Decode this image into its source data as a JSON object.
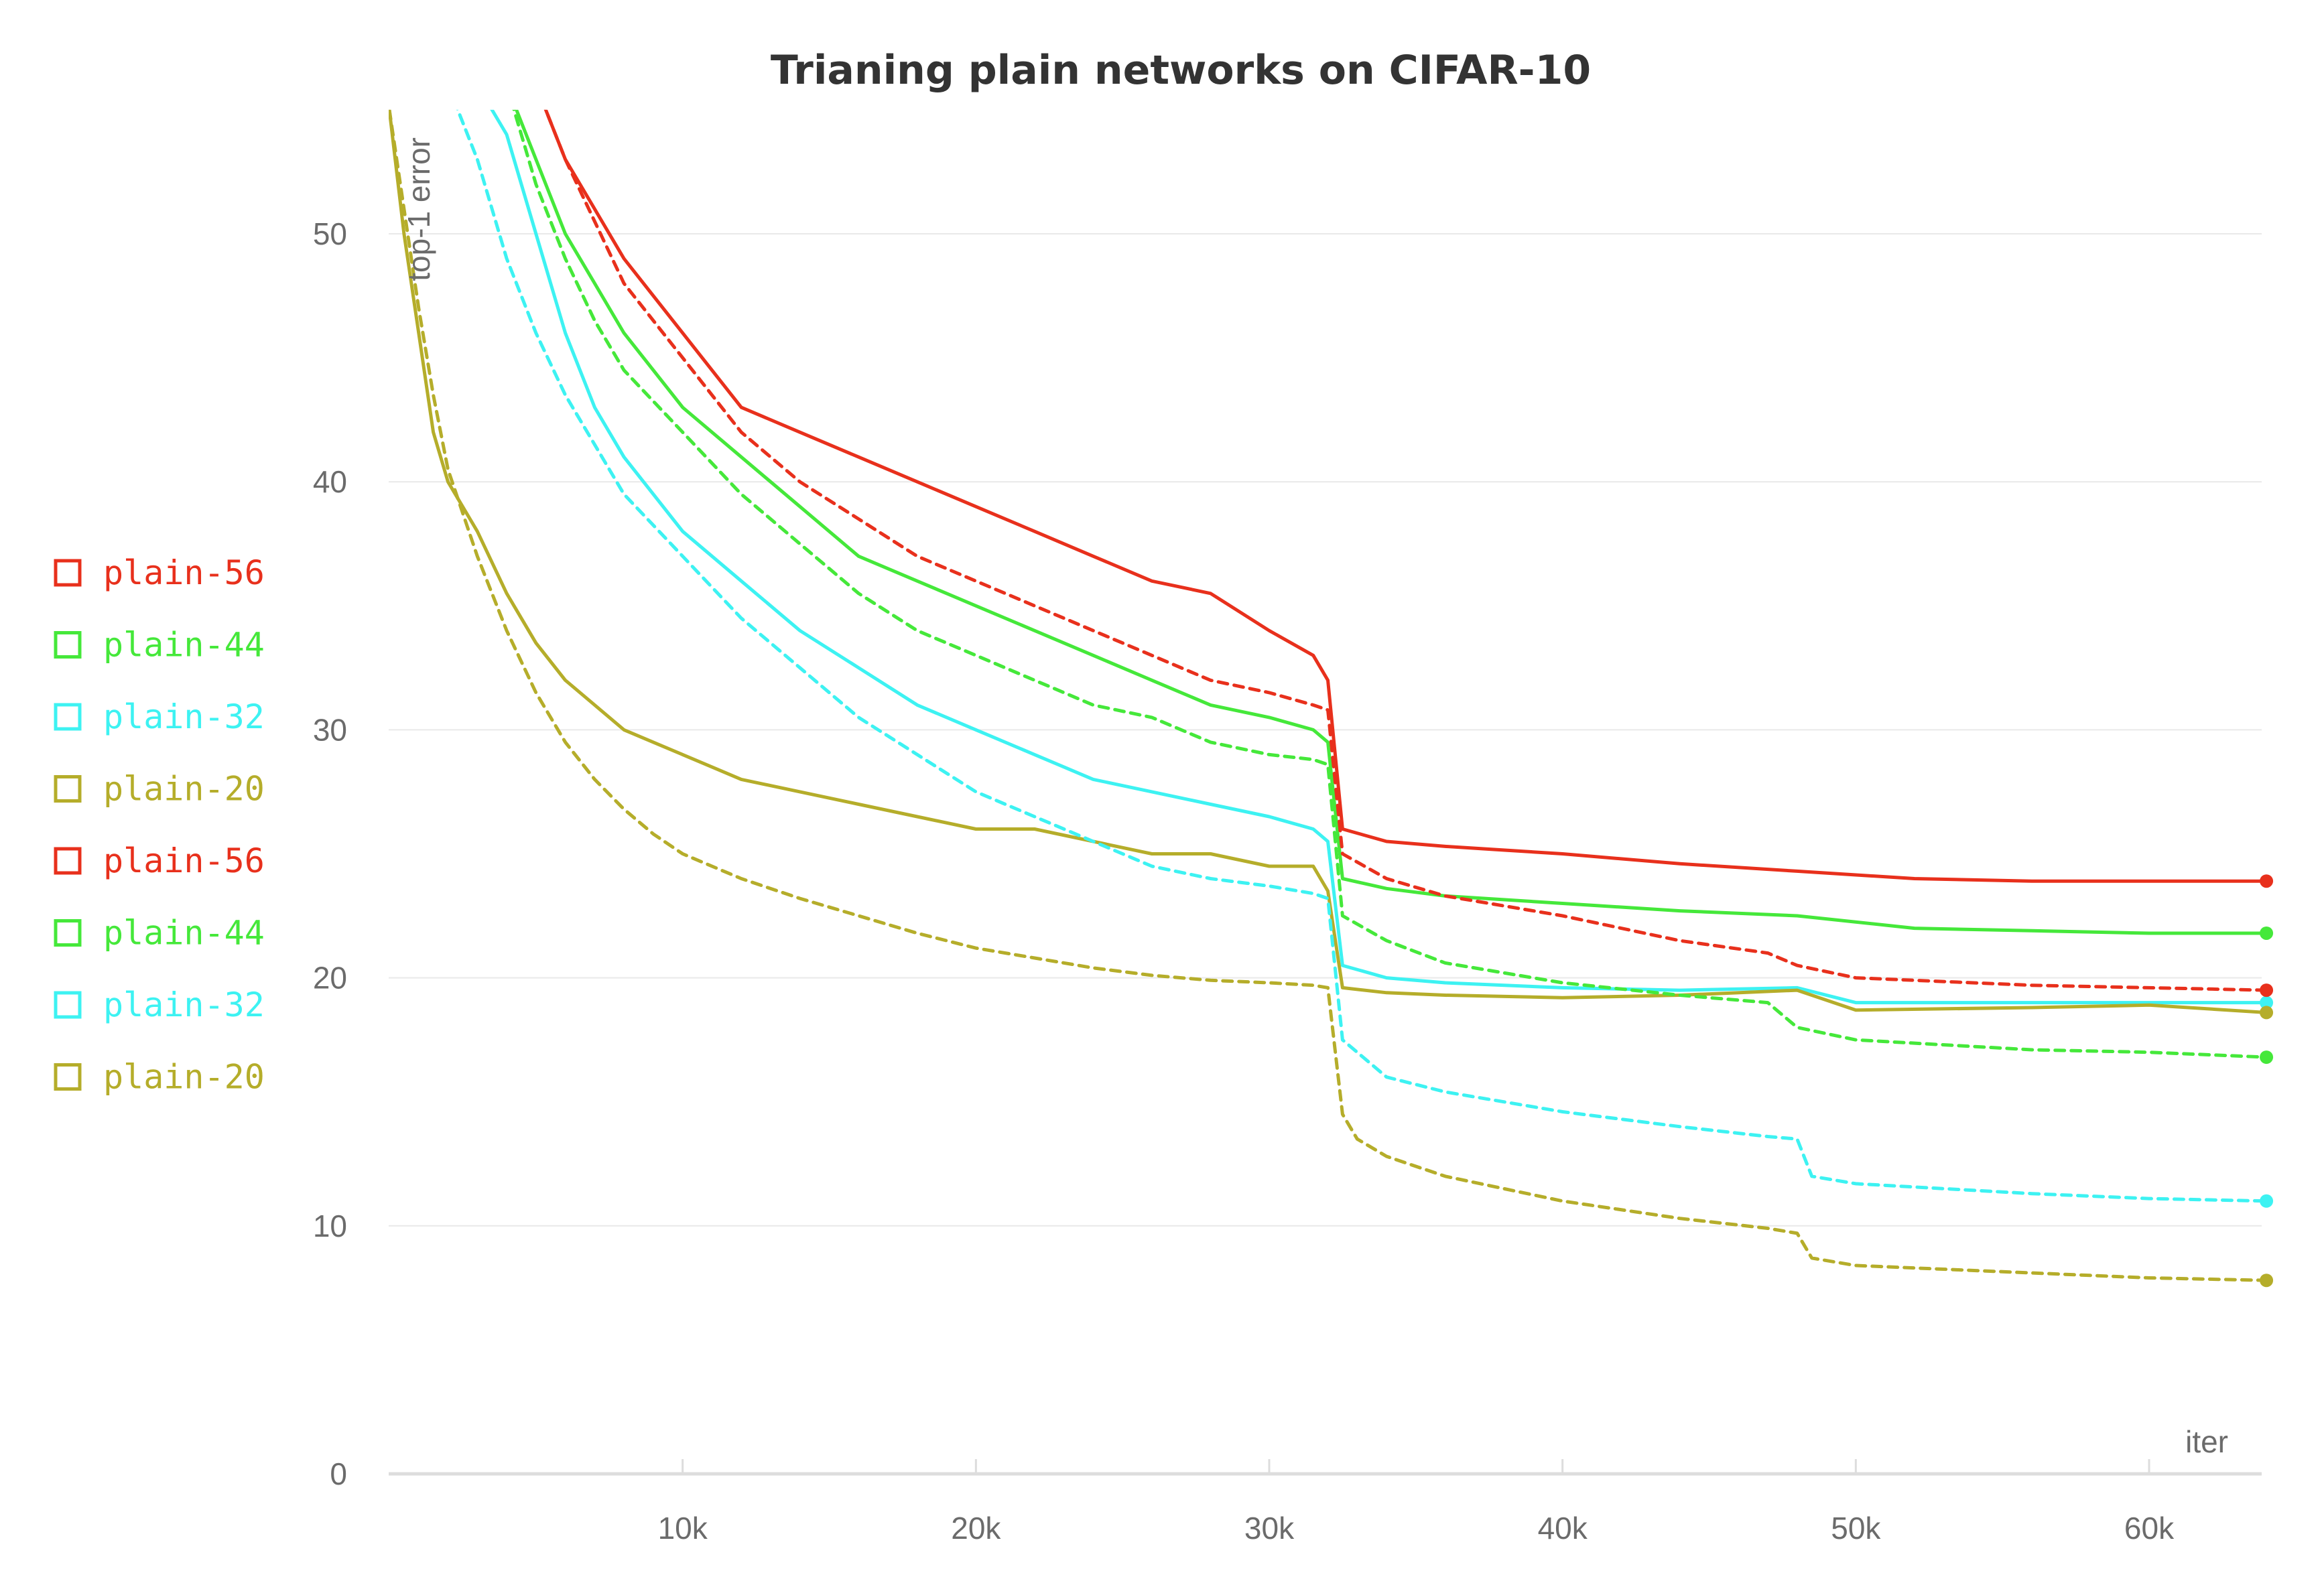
{
  "chart_data": {
    "type": "line",
    "title": "Trianing plain networks on CIFAR-10",
    "xlabel": "iter",
    "ylabel": "top-1 error",
    "xlim": [
      0,
      64000
    ],
    "ylim": [
      0,
      55
    ],
    "x_ticks": [
      10000,
      20000,
      30000,
      40000,
      50000,
      60000
    ],
    "x_tick_labels": [
      "10k",
      "20k",
      "30k",
      "40k",
      "50k",
      "60k"
    ],
    "y_ticks": [
      0,
      10,
      20,
      30,
      40,
      50
    ],
    "y_tick_labels": [
      "0",
      "10",
      "20",
      "30",
      "40",
      "50"
    ],
    "grid": "horizontal",
    "legend_position": "left",
    "legend": [
      {
        "label": "plain-56",
        "color": "#e8301c"
      },
      {
        "label": "plain-44",
        "color": "#45e83a"
      },
      {
        "label": "plain-32",
        "color": "#3df2f2"
      },
      {
        "label": "plain-20",
        "color": "#b5ad2a"
      },
      {
        "label": "plain-56",
        "color": "#e8301c"
      },
      {
        "label": "plain-44",
        "color": "#45e83a"
      },
      {
        "label": "plain-32",
        "color": "#3df2f2"
      },
      {
        "label": "plain-20",
        "color": "#b5ad2a"
      }
    ],
    "series": [
      {
        "name": "plain-56",
        "style": "solid",
        "color": "#e8301c",
        "x": [
          1000,
          5000,
          6000,
          7000,
          8000,
          9000,
          10000,
          12000,
          14000,
          16000,
          18000,
          20000,
          22000,
          24000,
          26000,
          28000,
          30000,
          31500,
          32000,
          32500,
          34000,
          36000,
          40000,
          44000,
          48000,
          52000,
          56000,
          60000,
          64000
        ],
        "y": [
          56,
          56,
          53,
          51,
          49,
          47.5,
          46,
          43,
          42,
          41,
          40,
          39,
          38,
          37,
          36,
          35.5,
          34,
          33,
          32,
          26,
          25.5,
          25.3,
          25,
          24.6,
          24.3,
          24,
          23.9,
          23.9,
          23.9
        ]
      },
      {
        "name": "plain-44",
        "style": "solid",
        "color": "#45e83a",
        "x": [
          1000,
          4000,
          5000,
          6000,
          7000,
          8000,
          9000,
          10000,
          12000,
          14000,
          16000,
          18000,
          20000,
          22000,
          24000,
          26000,
          28000,
          30000,
          31500,
          32000,
          32500,
          34000,
          36000,
          40000,
          44000,
          48000,
          52000,
          56000,
          60000,
          64000
        ],
        "y": [
          56,
          56,
          53,
          50,
          48,
          46,
          44.5,
          43,
          41,
          39,
          37,
          36,
          35,
          34,
          33,
          32,
          31,
          30.5,
          30,
          29.5,
          24,
          23.6,
          23.3,
          23,
          22.7,
          22.5,
          22,
          21.9,
          21.8,
          21.8
        ]
      },
      {
        "name": "plain-32",
        "style": "solid",
        "color": "#3df2f2",
        "x": [
          1000,
          2000,
          3000,
          4000,
          5000,
          6000,
          7000,
          8000,
          9000,
          10000,
          12000,
          14000,
          16000,
          18000,
          20000,
          22000,
          24000,
          26000,
          28000,
          30000,
          31500,
          32000,
          32500,
          34000,
          36000,
          40000,
          44000,
          48000,
          50000,
          56000,
          60000,
          64000
        ],
        "y": [
          56,
          56,
          56,
          54,
          50,
          46,
          43,
          41,
          39.5,
          38,
          36,
          34,
          32.5,
          31,
          30,
          29,
          28,
          27.5,
          27,
          26.5,
          26,
          25.5,
          20.5,
          20,
          19.8,
          19.6,
          19.5,
          19.6,
          19,
          19,
          19,
          19
        ]
      },
      {
        "name": "plain-20",
        "style": "solid",
        "color": "#b5ad2a",
        "x": [
          0,
          500,
          1000,
          1500,
          2000,
          3000,
          4000,
          5000,
          6000,
          7000,
          8000,
          9000,
          10000,
          12000,
          14000,
          16000,
          18000,
          20000,
          22000,
          24000,
          26000,
          28000,
          30000,
          31500,
          32000,
          32500,
          34000,
          36000,
          40000,
          44000,
          48000,
          50000,
          56000,
          60000,
          64000
        ],
        "y": [
          55,
          50,
          46,
          42,
          40,
          38,
          35.5,
          33.5,
          32,
          31,
          30,
          29.5,
          29,
          28,
          27.5,
          27,
          26.5,
          26,
          26,
          25.5,
          25,
          25,
          24.5,
          24.5,
          23.5,
          19.6,
          19.4,
          19.3,
          19.2,
          19.3,
          19.5,
          18.7,
          18.8,
          18.9,
          18.6
        ]
      },
      {
        "name": "plain-56",
        "style": "dashed",
        "color": "#e8301c",
        "x": [
          5000,
          6000,
          7000,
          8000,
          10000,
          12000,
          14000,
          16000,
          18000,
          20000,
          22000,
          24000,
          26000,
          28000,
          30000,
          31500,
          32000,
          32500,
          34000,
          36000,
          40000,
          44000,
          47000,
          48000,
          50000,
          56000,
          60000,
          64000
        ],
        "y": [
          56,
          53,
          50.5,
          48,
          45,
          42,
          40,
          38.5,
          37,
          36,
          35,
          34,
          33,
          32,
          31.5,
          31,
          30.8,
          25,
          24,
          23.3,
          22.5,
          21.5,
          21,
          20.5,
          20,
          19.7,
          19.6,
          19.5
        ]
      },
      {
        "name": "plain-44",
        "style": "dashed",
        "color": "#45e83a",
        "x": [
          4000,
          5000,
          6000,
          7000,
          8000,
          10000,
          12000,
          14000,
          16000,
          18000,
          20000,
          22000,
          24000,
          26000,
          28000,
          30000,
          31500,
          32000,
          32500,
          34000,
          36000,
          40000,
          44000,
          47000,
          48000,
          50000,
          56000,
          60000,
          64000
        ],
        "y": [
          56,
          52,
          49,
          46.5,
          44.5,
          42,
          39.5,
          37.5,
          35.5,
          34,
          33,
          32,
          31,
          30.5,
          29.5,
          29,
          28.8,
          28.6,
          22.5,
          21.5,
          20.6,
          19.8,
          19.3,
          19,
          18,
          17.5,
          17.1,
          17,
          16.8
        ]
      },
      {
        "name": "plain-32",
        "style": "dashed",
        "color": "#3df2f2",
        "x": [
          2000,
          3000,
          4000,
          5000,
          6000,
          7000,
          8000,
          10000,
          12000,
          14000,
          16000,
          18000,
          20000,
          22000,
          24000,
          26000,
          28000,
          30000,
          31500,
          32000,
          32500,
          34000,
          36000,
          40000,
          44000,
          47000,
          48000,
          48500,
          50000,
          56000,
          60000,
          64000
        ],
        "y": [
          56,
          53,
          49,
          46,
          43.5,
          41.5,
          39.5,
          37,
          34.5,
          32.5,
          30.5,
          29,
          27.5,
          26.5,
          25.5,
          24.5,
          24,
          23.7,
          23.4,
          23.2,
          17.5,
          16,
          15.4,
          14.6,
          14,
          13.6,
          13.5,
          12,
          11.7,
          11.3,
          11.1,
          11
        ]
      },
      {
        "name": "plain-20",
        "style": "dashed",
        "color": "#b5ad2a",
        "x": [
          0,
          500,
          1000,
          1500,
          2000,
          3000,
          4000,
          5000,
          6000,
          7000,
          8000,
          9000,
          10000,
          12000,
          14000,
          16000,
          18000,
          20000,
          22000,
          24000,
          26000,
          28000,
          30000,
          31500,
          32000,
          32500,
          33000,
          34000,
          36000,
          40000,
          44000,
          47000,
          48000,
          48500,
          50000,
          56000,
          60000,
          64000
        ],
        "y": [
          55,
          51,
          47,
          43.5,
          40.5,
          37,
          34,
          31.5,
          29.5,
          28,
          26.8,
          25.8,
          25,
          24,
          23.2,
          22.5,
          21.8,
          21.2,
          20.8,
          20.4,
          20.1,
          19.9,
          19.8,
          19.7,
          19.6,
          14.5,
          13.5,
          12.8,
          12,
          11,
          10.3,
          9.9,
          9.7,
          8.7,
          8.4,
          8.1,
          7.9,
          7.8
        ]
      }
    ]
  }
}
